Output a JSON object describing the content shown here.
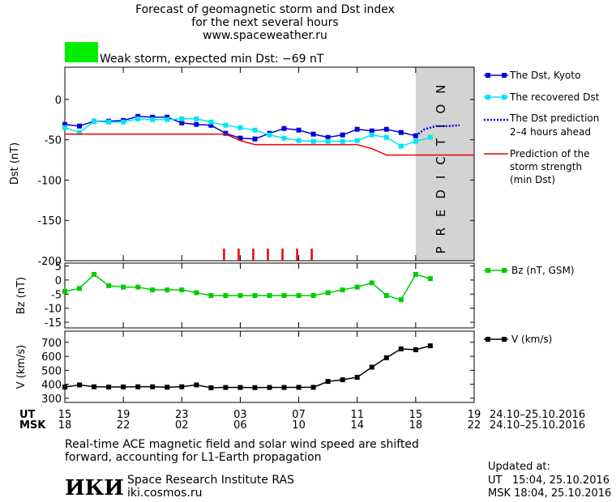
{
  "header": {
    "title_line1": "Forecast of geomagnetic storm and Dst index",
    "title_line2": "for the next several hours",
    "url": "www.spaceweather.ru"
  },
  "status": {
    "color": "#00ee00",
    "text": "Weak storm, expected min Dst: −69 nT"
  },
  "prediction_label": "PREDICTION",
  "legend": {
    "dst_kyoto": "The Dst, Kyoto",
    "dst_recovered": "The recovered Dst",
    "dst_prediction_1": "The Dst prediction",
    "dst_prediction_2": "2–4 hours ahead",
    "storm_strength_1": "Prediction of the",
    "storm_strength_2": "storm strength",
    "storm_strength_3": "(min Dst)",
    "bz": "Bz (nT, GSM)",
    "v": "V (km/s)"
  },
  "time_axis": {
    "ut_label": "UT",
    "msk_label": "MSK",
    "ut_ticks": [
      "15",
      "19",
      "23",
      "03",
      "07",
      "11",
      "15",
      "19"
    ],
    "msk_ticks": [
      "18",
      "22",
      "02",
      "06",
      "10",
      "14",
      "18",
      "22"
    ],
    "date_range": "24.10–25.10.2016"
  },
  "footer": {
    "note_line1": "Real-time ACE magnetic field and solar wind speed are shifted",
    "note_line2": "forward, accounting for L1-Earth propagation",
    "logo": "ИКИ",
    "institute": "Space Research Institute RAS",
    "site": "iki.cosmos.ru",
    "updated_label": "Updated at:",
    "updated_ut": "UT   15:04, 25.10.2016",
    "updated_msk": "MSK 18:04, 25.10.2016"
  },
  "chart_data": [
    {
      "type": "line",
      "ylabel": "Dst (nT)",
      "ylim": [
        -200,
        40
      ],
      "yticks": [
        0,
        -50,
        -100,
        -150,
        -200
      ],
      "xlim_hours": [
        15,
        43
      ],
      "prediction_region_start_hours": 39,
      "series": [
        {
          "name": "The Dst, Kyoto",
          "color": "#0000dd",
          "x": [
            15,
            16,
            17,
            18,
            19,
            20,
            21,
            22,
            23,
            24,
            25,
            26,
            27,
            28,
            29,
            30,
            31,
            32,
            33,
            34,
            35,
            36,
            37,
            38,
            39
          ],
          "values": [
            -31,
            -33,
            -27,
            -27,
            -26,
            -21,
            -22,
            -22,
            -29,
            -31,
            -32,
            -42,
            -48,
            -49,
            -42,
            -36,
            -38,
            -43,
            -47,
            -44,
            -37,
            -39,
            -37,
            -41,
            -45
          ]
        },
        {
          "name": "The recovered Dst",
          "color": "#00e5ee",
          "x": [
            15,
            16,
            17,
            18,
            19,
            20,
            21,
            22,
            23,
            24,
            25,
            26,
            27,
            28,
            29,
            30,
            31,
            32,
            33,
            34,
            35,
            36,
            37,
            38,
            39,
            40
          ],
          "values": [
            -35,
            -41,
            -27,
            -28,
            -28,
            -24,
            -25,
            -25,
            -24,
            -24,
            -28,
            -32,
            -35,
            -38,
            -44,
            -48,
            -51,
            -52,
            -52,
            -52,
            -51,
            -44,
            -47,
            -58,
            -52,
            -47
          ]
        },
        {
          "name": "The Dst prediction 2–4 hours ahead",
          "color": "#0000dd",
          "x": [
            39,
            39.6,
            40.4,
            41.2,
            42
          ],
          "values": [
            -45,
            -37,
            -33,
            -33,
            -32
          ]
        },
        {
          "name": "Prediction of the storm strength (min Dst)",
          "color": "#ee0000",
          "x": [
            15,
            26,
            27,
            28,
            33,
            34,
            35,
            36,
            37,
            39,
            43
          ],
          "values": [
            -43,
            -43,
            -51,
            -56,
            -56,
            -56,
            -56,
            -61,
            -69,
            -69,
            -69
          ]
        }
      ],
      "event_markers_hours": [
        26,
        27,
        28,
        29,
        30,
        31,
        32
      ]
    },
    {
      "type": "line",
      "ylabel": "Bz (nT)",
      "ylim": [
        -17,
        6
      ],
      "yticks": [
        5,
        0,
        -5,
        -10,
        -15
      ],
      "series": [
        {
          "name": "Bz (nT, GSM)",
          "color": "#00cc00",
          "x": [
            15,
            16,
            17,
            18,
            19,
            20,
            21,
            22,
            23,
            24,
            25,
            26,
            27,
            28,
            29,
            30,
            31,
            32,
            33,
            34,
            35,
            36,
            37,
            38,
            39,
            40
          ],
          "values": [
            -4,
            -3,
            2,
            -2,
            -2.5,
            -2.5,
            -3.5,
            -3.5,
            -3.5,
            -4.5,
            -5.5,
            -5.5,
            -5.5,
            -5.5,
            -5.5,
            -5.5,
            -5.5,
            -5.5,
            -4.5,
            -3.5,
            -2.5,
            -1,
            -5.5,
            -7,
            2,
            0.5
          ]
        }
      ]
    },
    {
      "type": "line",
      "ylabel": "V (km/s)",
      "ylim": [
        270,
        780
      ],
      "yticks": [
        700,
        600,
        500,
        400,
        300
      ],
      "series": [
        {
          "name": "V (km/s)",
          "color": "#000000",
          "x": [
            15,
            16,
            17,
            18,
            19,
            20,
            21,
            22,
            23,
            24,
            25,
            26,
            27,
            28,
            29,
            30,
            31,
            32,
            33,
            34,
            35,
            36,
            37,
            38,
            39,
            40
          ],
          "values": [
            380,
            395,
            382,
            380,
            381,
            382,
            382,
            379,
            382,
            395,
            375,
            377,
            377,
            376,
            377,
            377,
            378,
            378,
            420,
            432,
            450,
            522,
            590,
            653,
            647,
            675
          ]
        }
      ]
    }
  ]
}
